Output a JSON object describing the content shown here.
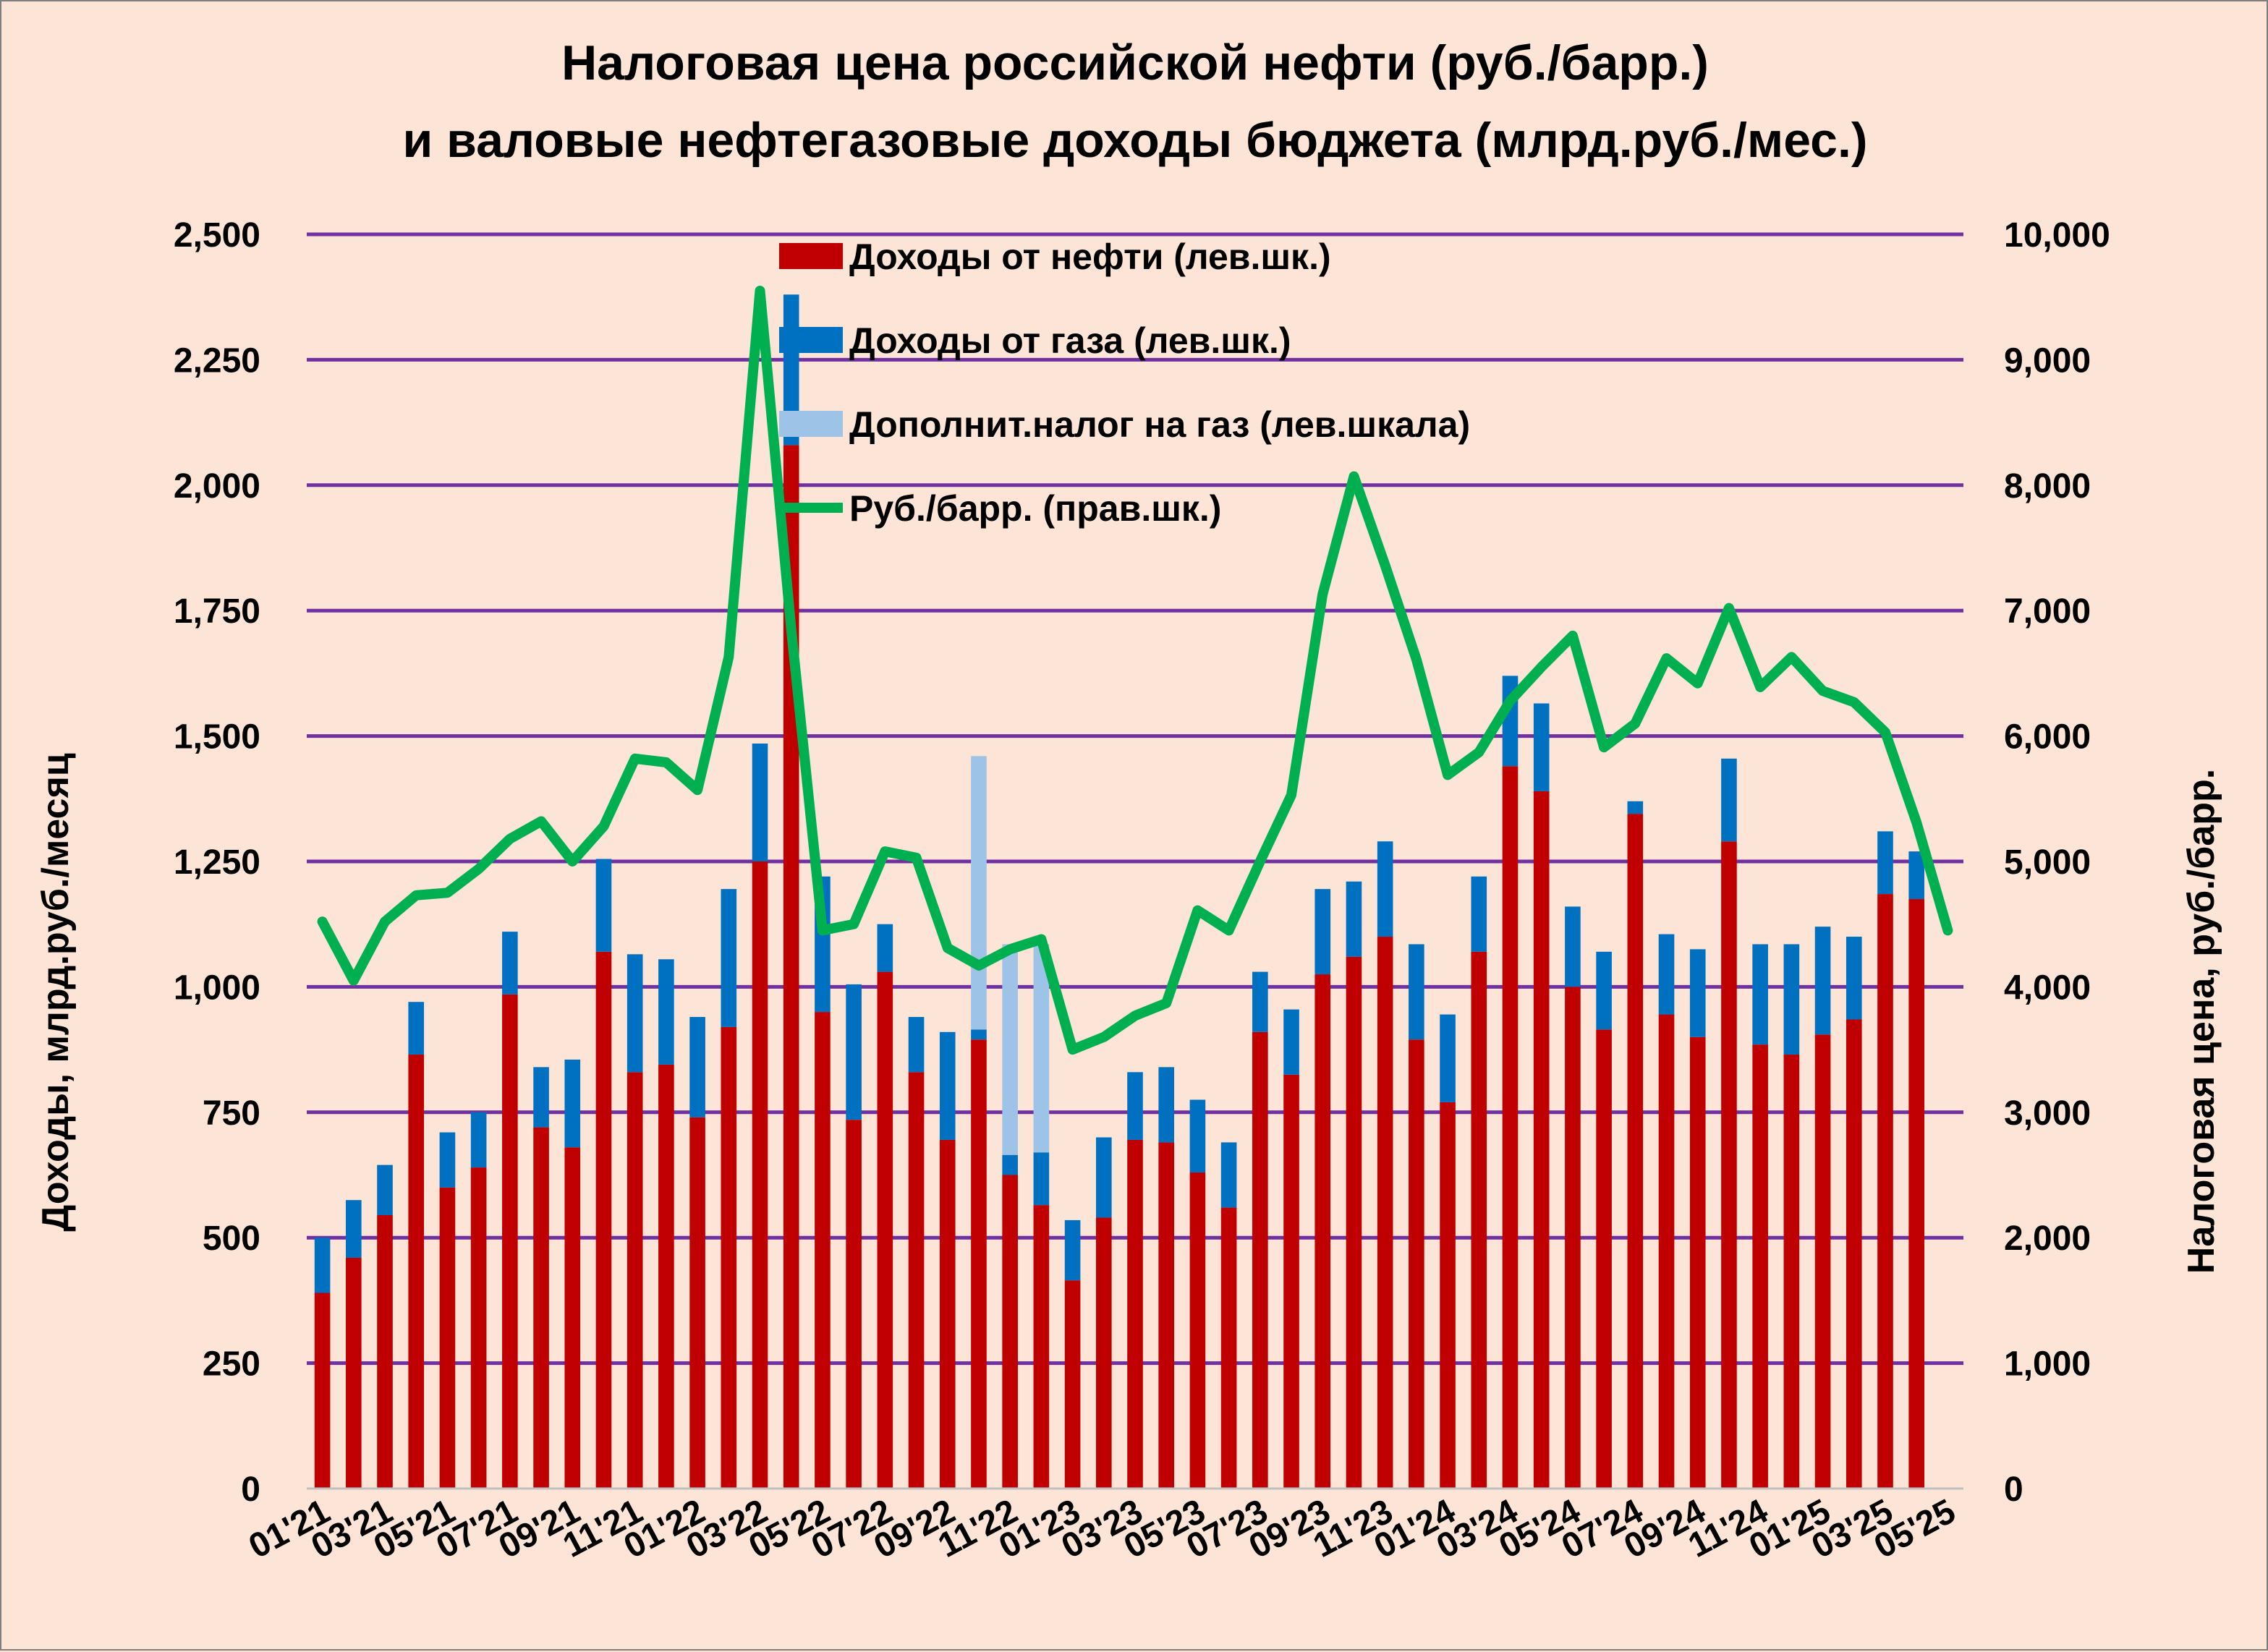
{
  "chart_data": {
    "type": "bar",
    "stacked": true,
    "title": [
      "Налоговая цена российской нефти (руб./барр.)",
      "и валовые нефтегазовые доходы бюджета (млрд.руб./мес.)"
    ],
    "ylabel_left": "Доходы, млрд.руб./месяц",
    "ylabel_right": "Налоговая цена, руб./барр.",
    "ylim_left": [
      0,
      2500
    ],
    "ylim_right": [
      0,
      10000
    ],
    "yticks_left": [
      "0",
      "250",
      "500",
      "750",
      "1,000",
      "1,250",
      "1,500",
      "1,750",
      "2,000",
      "2,250",
      "2,500"
    ],
    "yticks_right": [
      "0",
      "1,000",
      "2,000",
      "3,000",
      "4,000",
      "5,000",
      "6,000",
      "7,000",
      "8,000",
      "9,000",
      "10,000"
    ],
    "grid": true,
    "grid_color": "#7030a0",
    "legend_position": "top-center",
    "x_tick_labels": [
      "01'21",
      "03'21",
      "05'21",
      "07'21",
      "09'21",
      "11'21",
      "01'22",
      "03'22",
      "05'22",
      "07'22",
      "09'22",
      "11'22",
      "01'23",
      "03'23",
      "05'23",
      "07'23",
      "09'23",
      "11'23",
      "01'24",
      "03'24",
      "05'24",
      "07'24",
      "09'24",
      "11'24",
      "01'25",
      "03'25",
      "05'25"
    ],
    "series": [
      {
        "name": "Доходы от нефти (лев.шк.)",
        "kind": "bar",
        "axis": "left",
        "color": "#c00000",
        "values": [
          390,
          460,
          545,
          865,
          600,
          640,
          985,
          720,
          680,
          1070,
          830,
          845,
          740,
          920,
          1250,
          2080,
          950,
          735,
          1030,
          830,
          695,
          895,
          625,
          565,
          415,
          540,
          695,
          690,
          630,
          560,
          910,
          825,
          1025,
          1060,
          1100,
          895,
          770,
          1070,
          1440,
          1390,
          1000,
          915,
          1345,
          945,
          900,
          1290,
          885,
          865,
          905,
          935,
          1185,
          1175,
          null
        ]
      },
      {
        "name": "Доходы от газа (лев.шк.)",
        "kind": "bar",
        "axis": "left",
        "color": "#0070c0",
        "values": [
          110,
          115,
          100,
          105,
          110,
          110,
          125,
          120,
          175,
          185,
          235,
          210,
          200,
          275,
          235,
          300,
          270,
          270,
          95,
          110,
          215,
          20,
          40,
          105,
          120,
          160,
          135,
          150,
          145,
          130,
          120,
          130,
          170,
          150,
          190,
          190,
          175,
          150,
          180,
          175,
          160,
          155,
          25,
          160,
          175,
          165,
          200,
          220,
          215,
          165,
          125,
          95,
          null
        ]
      },
      {
        "name": "Дополнит.налог на газ (лев.шкала)",
        "kind": "bar",
        "axis": "left",
        "color": "#9dc3e6",
        "values": [
          0,
          0,
          0,
          0,
          0,
          0,
          0,
          0,
          0,
          0,
          0,
          0,
          0,
          0,
          0,
          0,
          0,
          0,
          0,
          0,
          0,
          545,
          420,
          415,
          0,
          0,
          0,
          0,
          0,
          0,
          0,
          0,
          0,
          0,
          0,
          0,
          0,
          0,
          0,
          0,
          0,
          0,
          0,
          0,
          0,
          0,
          0,
          0,
          0,
          0,
          0,
          0,
          null
        ]
      },
      {
        "name": "Руб./барр. (прав.шк.)",
        "kind": "line",
        "axis": "right",
        "color": "#00b050",
        "values": [
          4520,
          4050,
          4520,
          4730,
          4750,
          4940,
          5180,
          5320,
          5000,
          5280,
          5820,
          5790,
          5570,
          6630,
          9550,
          6850,
          4450,
          4500,
          5080,
          5030,
          4310,
          4170,
          4300,
          4380,
          3500,
          3600,
          3770,
          3870,
          4610,
          4450,
          5000,
          5530,
          7130,
          8070,
          7360,
          6610,
          5690,
          5870,
          6280,
          6550,
          6800,
          5910,
          6100,
          6620,
          6420,
          7020,
          6390,
          6630,
          6360,
          6270,
          6030,
          5310,
          4450
        ]
      }
    ]
  }
}
